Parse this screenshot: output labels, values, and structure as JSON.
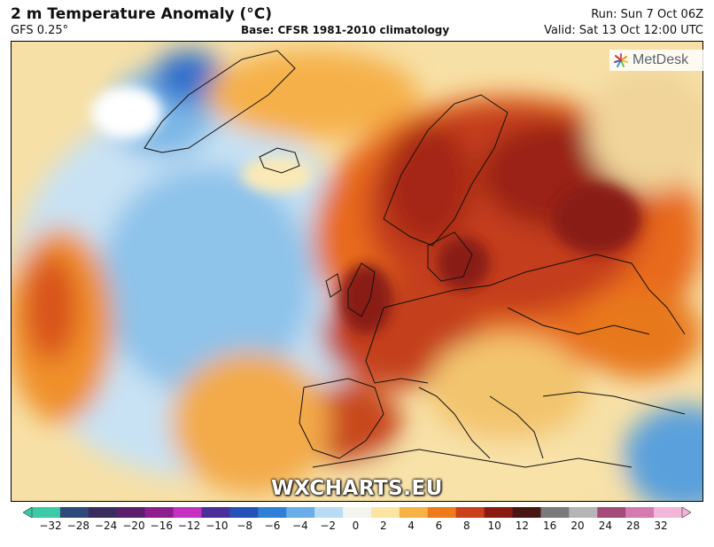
{
  "header": {
    "title": "2 m Temperature Anomaly (°C)",
    "model": "GFS 0.25°",
    "base": "Base: CFSR 1981-2010 climatology",
    "run": "Run: Sun 7 Oct 06Z",
    "valid": "Valid: Sat 13 Oct 12:00 UTC"
  },
  "logo": {
    "text": "MetDesk",
    "icon": "metdesk-star-icon"
  },
  "watermark": "WXCHARTS.EU",
  "legend": {
    "ticks": [
      "−32",
      "−28",
      "−24",
      "−20",
      "−16",
      "−12",
      "−10",
      "−8",
      "−6",
      "−4",
      "−2",
      "0",
      "2",
      "4",
      "6",
      "8",
      "10",
      "12",
      "16",
      "20",
      "24",
      "28",
      "32"
    ],
    "colors": [
      "#3cc9a5",
      "#2e4a7a",
      "#3b2c5e",
      "#5a1f6b",
      "#8e1d8e",
      "#c530c0",
      "#4a2f9a",
      "#2452b8",
      "#2f7fd6",
      "#69aee8",
      "#b9dcf5",
      "#f4f4ee",
      "#fbe5a0",
      "#f7b246",
      "#ee7a1a",
      "#c9401b",
      "#8a1a12",
      "#4a1612",
      "#7a7a7a",
      "#b5b5b5",
      "#a44a7a",
      "#d47ab0",
      "#f2b6d8"
    ]
  }
}
